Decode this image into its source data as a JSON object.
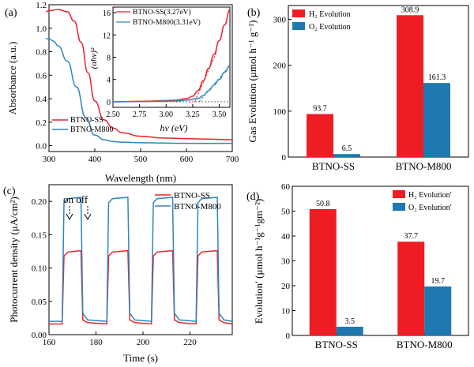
{
  "colors": {
    "red": "#e8242c",
    "blue": "#2e86c1",
    "red_fill": "#ee1d23",
    "blue_fill": "#1f78b0"
  },
  "chart_data": [
    {
      "panel": "(a)",
      "type": "line",
      "xlabel": "Wavelength (nm)",
      "ylabel": "Absorbance (a.u.)",
      "xlim": [
        300,
        700
      ],
      "ylim": [
        -0.05,
        1.2
      ],
      "xticks": [
        "300",
        "400",
        "500",
        "600",
        "700"
      ],
      "yticks": [
        "0.0",
        "0.2",
        "0.4",
        "0.6",
        "0.8",
        "1.0",
        "1.2"
      ],
      "legend_position": "bottom-left",
      "series": [
        {
          "name": "BTNO-SS",
          "color": "red",
          "x": [
            290,
            300,
            320,
            340,
            355,
            370,
            385,
            400,
            420,
            440,
            460,
            500,
            550,
            600,
            650,
            700
          ],
          "y": [
            1.14,
            1.15,
            1.16,
            1.14,
            1.06,
            0.88,
            0.62,
            0.38,
            0.22,
            0.15,
            0.11,
            0.08,
            0.065,
            0.06,
            0.055,
            0.05
          ]
        },
        {
          "name": "BTNO-M800",
          "color": "blue",
          "x": [
            290,
            300,
            310,
            320,
            340,
            360,
            380,
            400,
            420,
            440,
            460,
            500,
            600,
            700
          ],
          "y": [
            0.91,
            0.91,
            0.89,
            0.85,
            0.72,
            0.5,
            0.24,
            0.09,
            0.05,
            0.035,
            0.03,
            0.025,
            0.02,
            0.02
          ]
        }
      ],
      "inset": {
        "type": "line",
        "xlabel": "hν (eV)",
        "ylabel": "(αhν)²",
        "xlim": [
          2.5,
          3.6
        ],
        "ylim": [
          -1,
          17
        ],
        "xticks": [
          "2.50",
          "2.75",
          "3.00",
          "3.25",
          "3.50"
        ],
        "yticks": [
          "0",
          "4",
          "8",
          "12",
          "16"
        ],
        "legend_position": "top",
        "series": [
          {
            "name": "BTNO-SS(3.27eV)",
            "color": "red",
            "x": [
              2.5,
              2.8,
              3.0,
              3.1,
              3.2,
              3.25,
              3.3,
              3.35,
              3.4,
              3.45,
              3.5,
              3.55,
              3.6
            ],
            "y": [
              0,
              0.1,
              0.2,
              0.3,
              0.6,
              1.0,
              2.0,
              3.8,
              6.0,
              8.5,
              11.0,
              13.8,
              16.5
            ]
          },
          {
            "name": "BTNO-M800(3.31eV)",
            "color": "blue",
            "x": [
              2.5,
              2.8,
              3.0,
              3.1,
              3.2,
              3.3,
              3.35,
              3.4,
              3.45,
              3.5,
              3.55,
              3.6
            ],
            "y": [
              0,
              0.05,
              0.1,
              0.15,
              0.3,
              0.6,
              1.1,
              2.0,
              3.0,
              4.0,
              5.3,
              6.5
            ]
          }
        ],
        "tangents": [
          {
            "color": "red",
            "x": [
              3.27,
              3.48
            ],
            "y": [
              0,
              9.2
            ]
          },
          {
            "color": "blue",
            "x": [
              3.31,
              3.6
            ],
            "y": [
              0,
              6.5
            ]
          }
        ]
      }
    },
    {
      "panel": "(b)",
      "type": "bar",
      "ylabel": "Gas Evolution (μmol h⁻¹ g⁻¹)",
      "ylim": [
        0,
        330
      ],
      "yticks": [
        "0",
        "100",
        "200",
        "300"
      ],
      "categories": [
        "BTNO-SS",
        "BTNO-M800"
      ],
      "legend_position": "top-left",
      "series": [
        {
          "name": "H₂ Evolution",
          "color": "red_fill",
          "values": [
            93.7,
            308.9
          ],
          "labels": [
            "93.7",
            "308.9"
          ]
        },
        {
          "name": "O₂ Evolution",
          "color": "blue_fill",
          "values": [
            6.5,
            161.3
          ],
          "labels": [
            "6.5",
            "161.3"
          ]
        }
      ]
    },
    {
      "panel": "(c)",
      "type": "line",
      "xlabel": "Time (s)",
      "ylabel": "Photocurrent density (μA/cm²)",
      "xlim": [
        160,
        238
      ],
      "ylim": [
        0.0,
        0.225
      ],
      "xticks": [
        "160",
        "180",
        "200",
        "220"
      ],
      "yticks": [
        "0.00",
        "0.05",
        "0.10",
        "0.15",
        "0.20"
      ],
      "legend_position": "top-right",
      "annotations": [
        {
          "text": "on off"
        }
      ],
      "series": [
        {
          "name": "BTNO-SS",
          "color": "red",
          "on": [
            0.118,
            0.126
          ],
          "off": [
            0.022,
            0.016
          ],
          "cycles_on": [
            [
              166,
              174
            ],
            [
              185,
              194
            ],
            [
              204,
              213
            ],
            [
              223,
              232
            ]
          ],
          "start": 160,
          "end": 238
        },
        {
          "name": "BTNO-M800",
          "color": "blue",
          "on": [
            0.198,
            0.206
          ],
          "off": [
            0.032,
            0.02
          ],
          "cycles_on": [
            [
              166,
              174
            ],
            [
              185,
              194
            ],
            [
              204,
              213
            ],
            [
              223,
              232
            ]
          ],
          "start": 160,
          "end": 238
        }
      ]
    },
    {
      "panel": "(d)",
      "type": "bar",
      "ylabel": "Evolutionʹ (μmol h⁻¹g⁻¹gm⁻²)",
      "ylim": [
        0,
        60
      ],
      "yticks": [
        "0",
        "10",
        "20",
        "30",
        "40",
        "50",
        "60"
      ],
      "categories": [
        "BTNO-SS",
        "BTNO-M800"
      ],
      "legend_position": "top-right",
      "series": [
        {
          "name": "H₂ Evolutionʹ",
          "color": "red_fill",
          "values": [
            50.8,
            37.7
          ],
          "labels": [
            "50.8",
            "37.7"
          ]
        },
        {
          "name": "O₂ Evolutionʹ",
          "color": "blue_fill",
          "values": [
            3.5,
            19.7
          ],
          "labels": [
            "3.5",
            "19.7"
          ]
        }
      ]
    }
  ]
}
